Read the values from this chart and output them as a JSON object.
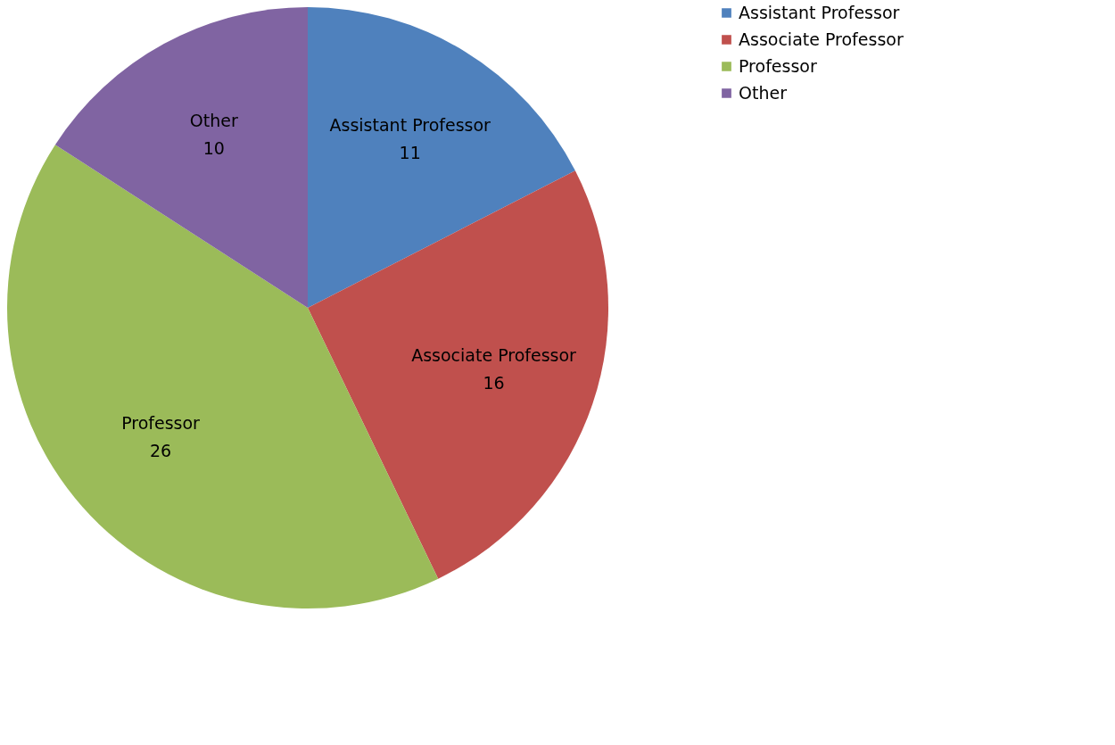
{
  "chart_data": {
    "type": "pie",
    "categories": [
      "Assistant Professor",
      "Associate Professor",
      "Professor",
      "Other"
    ],
    "values": [
      11,
      16,
      26,
      10
    ],
    "colors": [
      "#4f81bd",
      "#c0504d",
      "#9bbb59",
      "#8064a2"
    ],
    "data_labels": true,
    "legend": "right"
  }
}
